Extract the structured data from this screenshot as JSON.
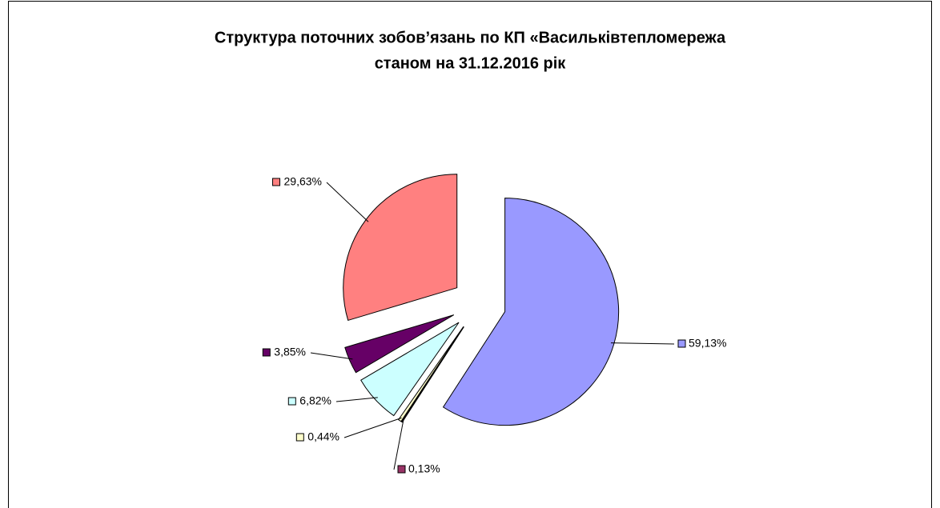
{
  "chart_data": {
    "type": "pie",
    "title": [
      "Структура поточних зобов’язань по КП «Васильківтепломережа",
      "станом  на 31.12.2016 рік"
    ],
    "values": [
      59.13,
      0.13,
      0.44,
      6.82,
      3.85,
      29.63
    ],
    "value_labels": [
      "59,13%",
      "0,13%",
      "0,44%",
      "6,82%",
      "3,85%",
      "29,63%"
    ],
    "colors": [
      "#9999ff",
      "#993366",
      "#ffffcc",
      "#ccffff",
      "#660066",
      "#ff8080"
    ]
  }
}
